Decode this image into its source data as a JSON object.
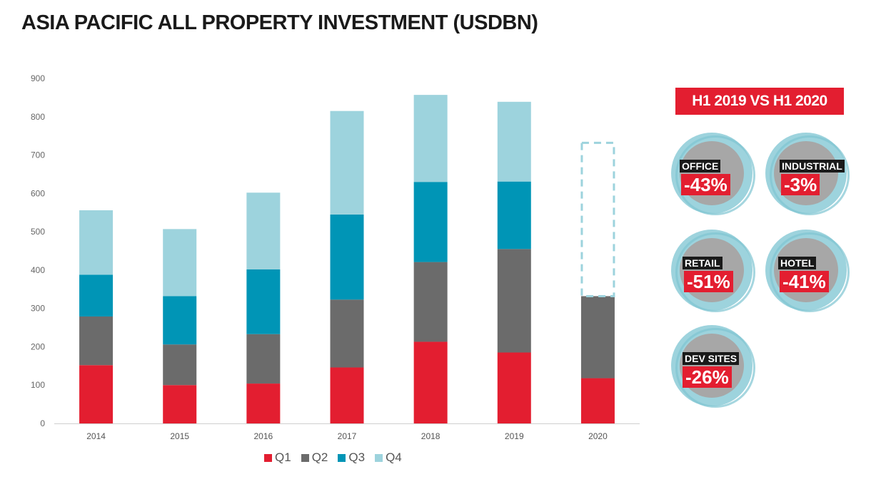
{
  "title": "ASIA PACIFIC ALL PROPERTY INVESTMENT (USDBN)",
  "colors": {
    "Q1": "#e31e30",
    "Q2": "#6b6b6b",
    "Q3": "#0095b6",
    "Q4": "#9dd3dd",
    "accent": "#e31e30"
  },
  "chart_data": {
    "type": "bar",
    "stacked": true,
    "title": "ASIA PACIFIC ALL PROPERTY INVESTMENT (USDBN)",
    "categories": [
      "2014",
      "2015",
      "2016",
      "2017",
      "2018",
      "2019",
      "2020"
    ],
    "series": [
      {
        "name": "Q1",
        "values": [
          152,
          100,
          104,
          146,
          213,
          185,
          118
        ]
      },
      {
        "name": "Q2",
        "values": [
          127,
          106,
          129,
          177,
          208,
          270,
          214
        ]
      },
      {
        "name": "Q3",
        "values": [
          109,
          126,
          169,
          222,
          209,
          176,
          0
        ]
      },
      {
        "name": "Q4",
        "values": [
          168,
          175,
          200,
          270,
          227,
          208,
          0
        ]
      }
    ],
    "projection_outline": {
      "category": "2020",
      "from": 332,
      "to": 732
    },
    "yticks": [
      0,
      100,
      200,
      300,
      400,
      500,
      600,
      700,
      800,
      900
    ],
    "ylim": [
      0,
      900
    ],
    "grid": false,
    "legend": "bottom"
  },
  "comparison": {
    "label": "H1 2019 VS H1 2020",
    "sectors": [
      {
        "name": "OFFICE",
        "change": "-43%"
      },
      {
        "name": "INDUSTRIAL",
        "change": "-3%"
      },
      {
        "name": "RETAIL",
        "change": "-51%"
      },
      {
        "name": "HOTEL",
        "change": "-41%"
      },
      {
        "name": "DEV SITES",
        "change": "-26%"
      }
    ]
  }
}
